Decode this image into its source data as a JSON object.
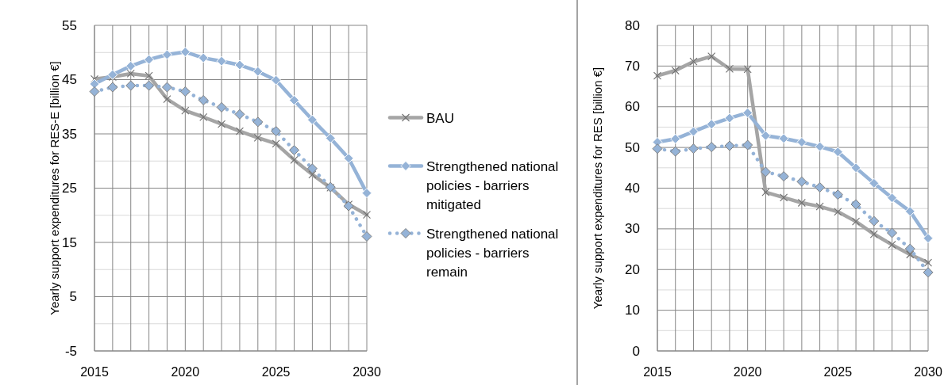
{
  "chart_data": [
    {
      "type": "line",
      "ylabel": "Yearly support expenditures for RES-E [billion €]",
      "x": [
        2015,
        2016,
        2017,
        2018,
        2019,
        2020,
        2021,
        2022,
        2023,
        2024,
        2025,
        2026,
        2027,
        2028,
        2029,
        2030
      ],
      "xlim": [
        2015,
        2030
      ],
      "xticks": [
        2015,
        {
          "value": 2016,
          "label": null
        },
        {
          "value": 2017,
          "label": null
        },
        {
          "value": 2018,
          "label": null
        },
        {
          "value": 2019,
          "label": null
        },
        2020,
        {
          "value": 2021,
          "label": null
        },
        {
          "value": 2022,
          "label": null
        },
        {
          "value": 2023,
          "label": null
        },
        {
          "value": 2024,
          "label": null
        },
        2025,
        {
          "value": 2026,
          "label": null
        },
        {
          "value": 2027,
          "label": null
        },
        {
          "value": 2028,
          "label": null
        },
        {
          "value": 2029,
          "label": null
        },
        2030
      ],
      "ylim": [
        -5,
        55
      ],
      "yticks": [
        -5,
        {
          "value": 0,
          "label": null
        },
        5,
        {
          "value": 10,
          "label": null
        },
        15,
        {
          "value": 20,
          "label": null
        },
        25,
        {
          "value": 30,
          "label": null
        },
        35,
        {
          "value": 40,
          "label": null
        },
        45,
        {
          "value": 50,
          "label": null
        },
        55
      ],
      "grid": true,
      "legend": "right",
      "series": [
        {
          "name": "BAU",
          "color": "#a5a5a5",
          "marker": "cross",
          "line_style": "solid",
          "values": [
            45.1,
            45.5,
            46.1,
            45.7,
            41.4,
            39.3,
            38.1,
            36.8,
            35.5,
            34.3,
            33.2,
            30.2,
            27.5,
            25.1,
            22.0,
            20.1
          ]
        },
        {
          "name": "Strengthened national policies - barriers mitigated",
          "color": "#95b3d7",
          "marker": "diamond",
          "line_style": "solid",
          "values": [
            44.2,
            45.9,
            47.5,
            48.7,
            49.6,
            50.1,
            49.0,
            48.4,
            47.7,
            46.5,
            44.9,
            41.2,
            37.6,
            34.2,
            30.5,
            24.1
          ]
        },
        {
          "name": "Strengthened national policies - barriers remain",
          "color": "#95b3d7",
          "marker": "diamond",
          "line_style": "dotted",
          "values": [
            42.8,
            43.6,
            43.9,
            43.9,
            43.6,
            42.8,
            41.2,
            39.9,
            38.6,
            37.2,
            35.5,
            32.0,
            28.6,
            25.2,
            21.7,
            16.1
          ]
        }
      ]
    },
    {
      "type": "line",
      "ylabel": "Yearly support expenditures for RES [billion €]",
      "x": [
        2015,
        2016,
        2017,
        2018,
        2019,
        2020,
        2021,
        2022,
        2023,
        2024,
        2025,
        2026,
        2027,
        2028,
        2029,
        2030
      ],
      "xlim": [
        2015,
        2030
      ],
      "xticks": [
        2015,
        {
          "value": 2016,
          "label": null
        },
        {
          "value": 2017,
          "label": null
        },
        {
          "value": 2018,
          "label": null
        },
        {
          "value": 2019,
          "label": null
        },
        2020,
        {
          "value": 2021,
          "label": null
        },
        {
          "value": 2022,
          "label": null
        },
        {
          "value": 2023,
          "label": null
        },
        {
          "value": 2024,
          "label": null
        },
        2025,
        {
          "value": 2026,
          "label": null
        },
        {
          "value": 2027,
          "label": null
        },
        {
          "value": 2028,
          "label": null
        },
        {
          "value": 2029,
          "label": null
        },
        2030
      ],
      "ylim": [
        0,
        80
      ],
      "yticks": [
        0,
        {
          "value": 5,
          "label": null
        },
        10,
        {
          "value": 15,
          "label": null
        },
        20,
        {
          "value": 25,
          "label": null
        },
        30,
        {
          "value": 35,
          "label": null
        },
        40,
        {
          "value": 45,
          "label": null
        },
        50,
        {
          "value": 55,
          "label": null
        },
        60,
        {
          "value": 65,
          "label": null
        },
        70,
        {
          "value": 75,
          "label": null
        },
        80
      ],
      "grid": true,
      "series": [
        {
          "color": "#a5a5a5",
          "marker": "cross",
          "line_style": "solid",
          "values": [
            67.6,
            68.9,
            71.1,
            72.4,
            69.3,
            69.2,
            39.0,
            37.7,
            36.4,
            35.5,
            34.2,
            31.8,
            28.7,
            26.1,
            23.7,
            21.7
          ]
        },
        {
          "color": "#95b3d7",
          "marker": "diamond",
          "line_style": "solid",
          "values": [
            51.3,
            52.1,
            53.9,
            55.7,
            57.2,
            58.5,
            52.9,
            52.2,
            51.3,
            50.2,
            48.9,
            45.0,
            41.2,
            37.6,
            34.3,
            27.7
          ]
        },
        {
          "color": "#95b3d7",
          "marker": "diamond",
          "line_style": "dotted",
          "values": [
            49.7,
            49.0,
            49.7,
            50.1,
            50.4,
            50.6,
            44.0,
            42.9,
            41.6,
            40.2,
            38.4,
            36.0,
            31.9,
            29.0,
            25.1,
            19.3
          ]
        }
      ]
    }
  ]
}
